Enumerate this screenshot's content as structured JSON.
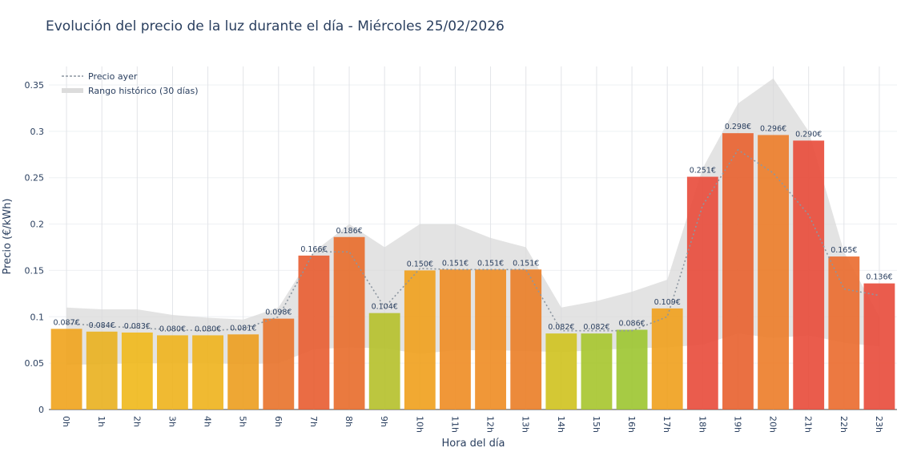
{
  "chart_data": {
    "type": "bar",
    "title": "Evolución del precio de la luz durante el día - Miércoles 25/02/2026",
    "xlabel": "Hora del día",
    "ylabel": "Precio (€/kWh)",
    "ylim": [
      0,
      0.37
    ],
    "yticks": [
      0,
      0.05,
      0.1,
      0.15,
      0.2,
      0.25,
      0.3,
      0.35
    ],
    "ytick_labels": [
      "0",
      "0.05",
      "0.1",
      "0.15",
      "0.2",
      "0.25",
      "0.3",
      "0.35"
    ],
    "grid": true,
    "legend_position": "top-left",
    "categories": [
      "0h",
      "1h",
      "2h",
      "3h",
      "4h",
      "5h",
      "6h",
      "7h",
      "8h",
      "9h",
      "10h",
      "11h",
      "12h",
      "13h",
      "14h",
      "15h",
      "16h",
      "17h",
      "18h",
      "19h",
      "20h",
      "21h",
      "22h",
      "23h"
    ],
    "values": [
      0.087,
      0.084,
      0.083,
      0.08,
      0.08,
      0.081,
      0.098,
      0.166,
      0.186,
      0.104,
      0.15,
      0.151,
      0.151,
      0.151,
      0.082,
      0.082,
      0.086,
      0.109,
      0.251,
      0.298,
      0.296,
      0.29,
      0.165,
      0.136
    ],
    "data_labels": [
      "0.087€",
      "0.084€",
      "0.083€",
      "0.080€",
      "0.080€",
      "0.081€",
      "0.098€",
      "0.166€",
      "0.186€",
      "0.104€",
      "0.150€",
      "0.151€",
      "0.151€",
      "0.151€",
      "0.082€",
      "0.082€",
      "0.086€",
      "0.109€",
      "0.251€",
      "0.298€",
      "0.296€",
      "0.290€",
      "0.165€",
      "0.136€"
    ],
    "bar_colors": [
      "#f0a31c",
      "#e9b01e",
      "#f0b81a",
      "#eeb21c",
      "#eeb21c",
      "#ec9d1e",
      "#e8722a",
      "#e85c30",
      "#e86b2a",
      "#b5c02a",
      "#f0a01c",
      "#ee8c22",
      "#ee8c22",
      "#ea7d26",
      "#cfc21e",
      "#a6c52c",
      "#9cc530",
      "#f0a01c",
      "#e84a3a",
      "#e8602e",
      "#ec7c28",
      "#e84a38",
      "#ea6a2c",
      "#e84a3a"
    ],
    "series": [
      {
        "name": "Precio ayer",
        "style": "dotted",
        "color": "#8c96a0",
        "values": [
          0.093,
          0.09,
          0.088,
          0.086,
          0.085,
          0.087,
          0.1,
          0.17,
          0.17,
          0.11,
          0.152,
          0.151,
          0.151,
          0.151,
          0.085,
          0.085,
          0.085,
          0.1,
          0.22,
          0.28,
          0.255,
          0.21,
          0.13,
          0.123
        ]
      },
      {
        "name": "Rango histórico (30 días)",
        "style": "band",
        "color": "#d9d9d9",
        "upper": [
          0.11,
          0.108,
          0.108,
          0.102,
          0.099,
          0.097,
          0.11,
          0.17,
          0.2,
          0.175,
          0.2,
          0.2,
          0.185,
          0.175,
          0.11,
          0.117,
          0.127,
          0.14,
          0.26,
          0.33,
          0.357,
          0.3,
          0.17,
          0.1
        ],
        "lower": [
          0.048,
          0.049,
          0.05,
          0.05,
          0.05,
          0.049,
          0.05,
          0.065,
          0.067,
          0.066,
          0.06,
          0.064,
          0.064,
          0.063,
          0.062,
          0.064,
          0.066,
          0.067,
          0.07,
          0.082,
          0.077,
          0.08,
          0.072,
          0.068
        ]
      }
    ]
  }
}
